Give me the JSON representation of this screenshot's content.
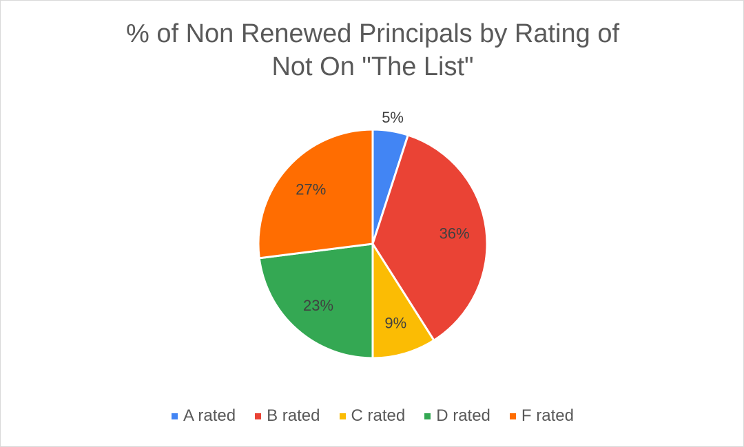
{
  "chart_data": {
    "type": "pie",
    "title_lines": [
      "% of Non Renewed Principals by Rating of",
      "Not On \"The List\""
    ],
    "categories": [
      "A rated",
      "B rated",
      "C rated",
      "D rated",
      "F rated"
    ],
    "values": [
      5,
      36,
      9,
      23,
      27
    ],
    "labels": [
      "5%",
      "36%",
      "9%",
      "23%",
      "27%"
    ],
    "colors": [
      "#4285f4",
      "#ea4335",
      "#fbbc04",
      "#34a853",
      "#ff6d01"
    ],
    "legend_position": "bottom",
    "start_angle": "top, clockwise"
  }
}
